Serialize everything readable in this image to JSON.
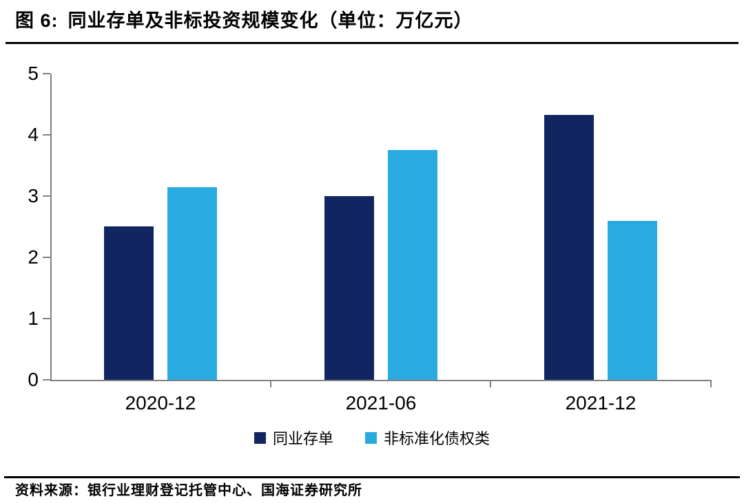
{
  "figure": {
    "label": "图 6:",
    "title": "同业存单及非标投资规模变化（单位：万亿元）"
  },
  "chart_data": {
    "type": "bar",
    "categories": [
      "2020-12",
      "2021-06",
      "2021-12"
    ],
    "series": [
      {
        "name": "同业存单",
        "color": "#112560",
        "values": [
          2.5,
          3.0,
          4.33
        ]
      },
      {
        "name": "非标准化债权类",
        "color": "#29ABE2",
        "values": [
          3.15,
          3.75,
          2.6
        ]
      }
    ],
    "title": "同业存单及非标投资规模变化",
    "unit": "万亿元",
    "xlabel": "",
    "ylabel": "",
    "ylim": [
      0,
      5
    ],
    "yticks": [
      0,
      1,
      2,
      3,
      4,
      5
    ],
    "grid": false,
    "legend_position": "bottom",
    "axis_color": "#808080"
  },
  "source": {
    "text": "资料来源：银行业理财登记托管中心、国海证券研究所"
  }
}
